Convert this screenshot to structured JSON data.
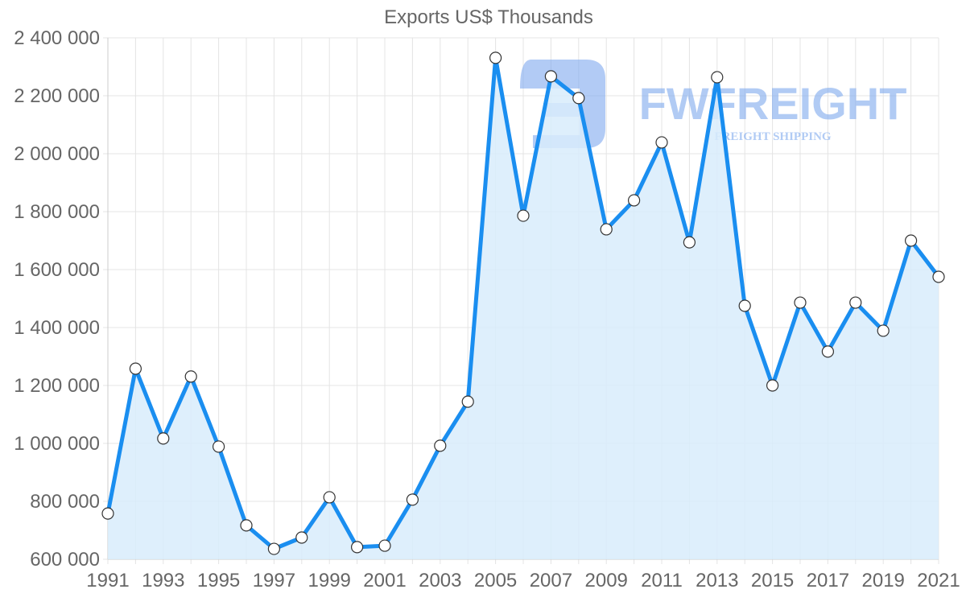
{
  "chart_data": {
    "type": "area",
    "title": "Exports US$ Thousands",
    "xlabel": "",
    "ylabel": "",
    "ylim": [
      600000,
      2400000
    ],
    "grid": true,
    "legend": "none",
    "y_ticks": [
      "600 000",
      "800 000",
      "1 000 000",
      "1 200 000",
      "1 400 000",
      "1 600 000",
      "1 800 000",
      "2 000 000",
      "2 200 000",
      "2 400 000"
    ],
    "x_tick_labels": [
      "1991",
      "1993",
      "1995",
      "1997",
      "1999",
      "2001",
      "2003",
      "2005",
      "2007",
      "2009",
      "2011",
      "2013",
      "2015",
      "2017",
      "2019",
      "2021"
    ],
    "x": [
      1991,
      1992,
      1993,
      1994,
      1995,
      1996,
      1997,
      1998,
      1999,
      2000,
      2001,
      2002,
      2003,
      2004,
      2005,
      2006,
      2007,
      2008,
      2009,
      2010,
      2011,
      2012,
      2013,
      2014,
      2015,
      2016,
      2017,
      2018,
      2019,
      2020,
      2021
    ],
    "series": [
      {
        "name": "Exports US$ Thousands",
        "values": [
          758000,
          1258000,
          1017000,
          1231000,
          989000,
          717000,
          636000,
          675000,
          814000,
          642000,
          647000,
          806000,
          992000,
          1144000,
          2331000,
          1786000,
          2267000,
          2192000,
          1739000,
          1839000,
          2039000,
          1694000,
          2264000,
          1475000,
          1200000,
          1486000,
          1317000,
          1486000,
          1389000,
          1700000,
          1575000
        ]
      }
    ]
  },
  "colors": {
    "line": "#1a8ef0",
    "fill": "#d8ecfc",
    "grid": "#e4e4e4",
    "text": "#666666",
    "watermark": "#a9c6f2"
  },
  "watermark": {
    "brand": "FWFREIGHT",
    "tagline": "FREIGHT SHIPPING"
  }
}
